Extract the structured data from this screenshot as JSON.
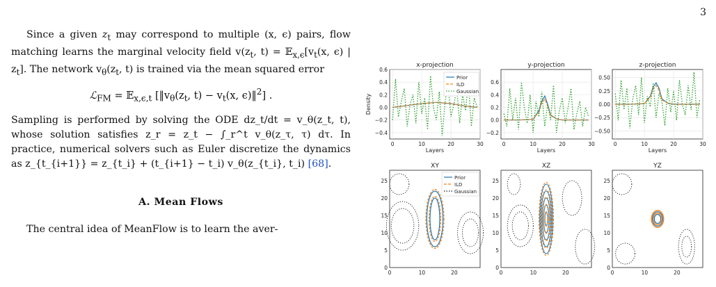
{
  "page": {
    "number": "3"
  },
  "text": {
    "p1_a": "Since a given ",
    "p1_zt": "z",
    "p1_b": " may correspond to multiple (x, ϵ) pairs, flow matching learns the marginal velocity field v(z",
    "p1_c": ", t) = 𝔼",
    "p1_d": "[v",
    "p1_e": "(x, ϵ) | z",
    "p1_f": "]. The network v",
    "p1_g": "(z",
    "p1_h": ", t) is trained via the mean squared error",
    "eq_lhs": "ℒ",
    "eq_lhs_sub": "FM",
    "eq_rhs": " = 𝔼",
    "eq_rhs_sub": "x,ϵ,t",
    "eq_rhs_b": " [‖v",
    "eq_rhs_c": "(z",
    "eq_rhs_d": ", t) − v",
    "eq_rhs_e": "(x, ϵ)‖",
    "eq_rhs_f": "2",
    "eq_rhs_g": "] .",
    "p2": "Sampling is performed by solving the ODE dz_t/dt = v_θ(z_t, t), whose solution satisfies z_r = z_t − ∫_r^t v_θ(z_τ, τ) dτ. In practice, numerical solvers such as Euler discretize the dynamics as z_{t_{i+1}} = z_{t_i} + (t_{i+1} − t_i) v_θ(z_{t_i}, t_i)",
    "p2_cite": "[68]",
    "p2_end": ".",
    "section_title": "A.    Mean Flows",
    "p3": "The central idea of MeanFlow is to learn the aver-"
  },
  "figure": {
    "colors": {
      "prior": "#1f77b4",
      "ild": "#ff7f0e",
      "gaussian": "#2ca02c",
      "contour_gauss": "#222222"
    },
    "top_titles": [
      "x-projection",
      "y-projection",
      "z-projection"
    ],
    "bottom_titles": [
      "XY",
      "XZ",
      "YZ"
    ],
    "xlabel": "Layers",
    "ylabel": "Density",
    "legend": [
      "Prior",
      "ILD",
      "Gaussian"
    ],
    "top_y_ticks": [
      [
        "0.6",
        "0.4",
        "0.2",
        "0.0",
        "−0.2",
        "−0.4"
      ],
      [
        "0.6",
        "0.4",
        "0.2",
        "0.0",
        "−0.2"
      ],
      [
        "0.50",
        "0.25",
        "0.00",
        "−0.25",
        "−0.50"
      ]
    ],
    "top_x_ticks": [
      "0",
      "10",
      "20",
      "30"
    ],
    "bottom_y_ticks": [
      "25",
      "20",
      "15",
      "10",
      "5",
      "0"
    ],
    "bottom_x_ticks": [
      "0",
      "10",
      "20"
    ]
  },
  "chart_data": [
    {
      "type": "line",
      "title": "x-projection",
      "xlabel": "Layers",
      "ylabel": "Density",
      "xlim": [
        -1,
        30
      ],
      "ylim": [
        -0.5,
        0.6
      ],
      "series": [
        {
          "name": "Prior",
          "x": [
            0,
            5,
            10,
            15,
            20,
            25,
            29
          ],
          "values": [
            0.0,
            0.03,
            0.06,
            0.08,
            0.06,
            0.02,
            0.0
          ]
        },
        {
          "name": "ILD",
          "x": [
            0,
            5,
            10,
            15,
            20,
            25,
            29
          ],
          "values": [
            0.0,
            0.03,
            0.06,
            0.08,
            0.06,
            0.02,
            0.0
          ]
        },
        {
          "name": "Gaussian",
          "x": [
            0,
            1,
            2,
            3,
            4,
            5,
            6,
            7,
            8,
            9,
            10,
            11,
            12,
            13,
            14,
            15,
            16,
            17,
            18,
            19,
            20,
            21,
            22,
            23,
            24,
            25,
            26,
            27,
            28,
            29
          ],
          "values": [
            -0.2,
            0.45,
            -0.15,
            0.1,
            0.3,
            -0.3,
            0.05,
            0.2,
            -0.25,
            0.4,
            -0.1,
            0.15,
            -0.35,
            0.5,
            0.0,
            -0.2,
            0.25,
            -0.45,
            0.1,
            0.35,
            -0.15,
            0.05,
            0.3,
            -0.25,
            0.2,
            -0.05,
            0.4,
            -0.3,
            0.15,
            0.0
          ]
        }
      ]
    },
    {
      "type": "line",
      "title": "y-projection",
      "xlabel": "Layers",
      "xlim": [
        -1,
        30
      ],
      "ylim": [
        -0.3,
        0.8
      ],
      "series": [
        {
          "name": "Prior",
          "x": [
            0,
            5,
            10,
            12,
            13,
            14,
            15,
            16,
            18,
            20,
            25,
            29
          ],
          "values": [
            0.0,
            0.0,
            0.01,
            0.15,
            0.3,
            0.38,
            0.25,
            0.08,
            0.02,
            0.0,
            0.0,
            0.0
          ]
        },
        {
          "name": "ILD",
          "x": [
            0,
            5,
            10,
            12,
            13,
            14,
            15,
            16,
            18,
            20,
            25,
            29
          ],
          "values": [
            0.0,
            0.0,
            0.01,
            0.13,
            0.27,
            0.33,
            0.22,
            0.07,
            0.02,
            0.0,
            0.0,
            0.0
          ]
        },
        {
          "name": "Gaussian",
          "x": [
            0,
            1,
            2,
            3,
            4,
            5,
            6,
            7,
            8,
            9,
            10,
            11,
            12,
            13,
            14,
            15,
            16,
            17,
            18,
            19,
            20,
            21,
            22,
            23,
            24,
            25,
            26,
            27,
            28,
            29
          ],
          "values": [
            0.1,
            -0.1,
            0.5,
            0.0,
            0.35,
            -0.15,
            0.6,
            0.2,
            -0.05,
            0.4,
            -0.2,
            0.3,
            0.05,
            0.45,
            -0.1,
            0.25,
            0.0,
            0.55,
            -0.2,
            0.15,
            0.35,
            -0.05,
            0.2,
            0.5,
            -0.15,
            0.1,
            0.3,
            -0.1,
            0.2,
            0.05
          ]
        }
      ]
    },
    {
      "type": "line",
      "title": "z-projection",
      "xlabel": "Layers",
      "xlim": [
        -1,
        30
      ],
      "ylim": [
        -0.65,
        0.65
      ],
      "series": [
        {
          "name": "Prior",
          "x": [
            0,
            5,
            10,
            12,
            13,
            14,
            15,
            16,
            18,
            20,
            25,
            29
          ],
          "values": [
            0.0,
            0.0,
            0.01,
            0.15,
            0.32,
            0.4,
            0.3,
            0.1,
            0.02,
            0.0,
            0.0,
            0.0
          ]
        },
        {
          "name": "ILD",
          "x": [
            0,
            5,
            10,
            12,
            13,
            14,
            15,
            16,
            18,
            20,
            25,
            29
          ],
          "values": [
            0.0,
            0.0,
            0.01,
            0.13,
            0.28,
            0.35,
            0.26,
            0.08,
            0.02,
            0.0,
            0.0,
            0.0
          ]
        },
        {
          "name": "Gaussian",
          "x": [
            0,
            1,
            2,
            3,
            4,
            5,
            6,
            7,
            8,
            9,
            10,
            11,
            12,
            13,
            14,
            15,
            16,
            17,
            18,
            19,
            20,
            21,
            22,
            23,
            24,
            25,
            26,
            27,
            28,
            29
          ],
          "values": [
            0.2,
            -0.3,
            0.45,
            -0.1,
            0.3,
            -0.45,
            0.1,
            0.35,
            -0.2,
            0.5,
            -0.35,
            0.15,
            -0.05,
            0.4,
            -0.25,
            0.2,
            0.05,
            -0.4,
            0.3,
            -0.15,
            0.25,
            -0.3,
            0.45,
            0.0,
            -0.2,
            0.35,
            -0.1,
            0.6,
            -0.25,
            0.1
          ]
        }
      ]
    }
  ]
}
